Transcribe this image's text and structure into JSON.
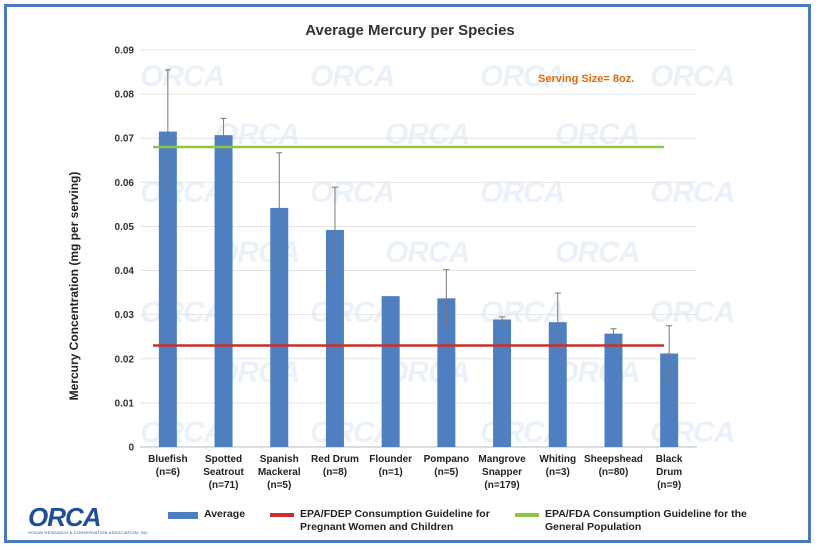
{
  "chart_data": {
    "type": "bar",
    "title": "Average Mercury per Species",
    "ylabel": "Mercury Concentration  (mg per serving)",
    "xlabel": "",
    "ylim": [
      0,
      0.09
    ],
    "yticks": [
      "0",
      "0.01",
      "0.02",
      "0.03",
      "0.04",
      "0.05",
      "0.06",
      "0.07",
      "0.08",
      "0.09"
    ],
    "grid": true,
    "annotation": "Serving Size= 8oz.",
    "categories": [
      [
        "Bluefish",
        "(n=6)"
      ],
      [
        "Spotted",
        "Seatrout",
        "(n=71)"
      ],
      [
        "Spanish",
        "Mackeral",
        "(n=5)"
      ],
      [
        "Red Drum",
        "(n=8)"
      ],
      [
        "Flounder",
        "(n=1)"
      ],
      [
        "Pompano",
        "(n=5)"
      ],
      [
        "Mangrove",
        "Snapper",
        "(n=179)"
      ],
      [
        "Whiting",
        "(n=3)"
      ],
      [
        "Sheepshead",
        "(n=80)"
      ],
      [
        "Black",
        "Drum",
        "(n=9)"
      ]
    ],
    "series": [
      {
        "name": "Average",
        "color": "#4e7fc0",
        "values": [
          0.0715,
          0.0707,
          0.0542,
          0.0492,
          0.0342,
          0.0337,
          0.0289,
          0.0283,
          0.0257,
          0.0212
        ],
        "error_low": [
          0.0575,
          0.0665,
          0.0415,
          0.0395,
          null,
          0.027,
          0.0283,
          0.0225,
          0.0248,
          0.0155
        ],
        "error_high": [
          0.0855,
          0.0745,
          0.0667,
          0.0589,
          null,
          0.0402,
          0.0295,
          0.0349,
          0.0268,
          0.0275
        ]
      }
    ],
    "reference_lines": [
      {
        "name": "EPA/FDEP Consumption Guideline for Pregnant Women and Children",
        "value": 0.023,
        "color": "#c9302c"
      },
      {
        "name": "EPA/FDA Consumption Guideline for the General Population",
        "value": 0.068,
        "color": "#8dc63f"
      }
    ],
    "legend": {
      "placement": "bottom",
      "entries": [
        {
          "lines": [
            "Average"
          ]
        },
        {
          "lines": [
            "EPA/FDEP Consumption Guideline for",
            "Pregnant Women and Children"
          ]
        },
        {
          "lines": [
            "EPA/FDA Consumption Guideline for the",
            "General Population"
          ]
        }
      ]
    }
  },
  "logo": {
    "name": "ORCA",
    "subtitle": "OCEAN RESEARCH & CONSERVATION ASSOCIATION, INC."
  },
  "watermark": "ORCA"
}
